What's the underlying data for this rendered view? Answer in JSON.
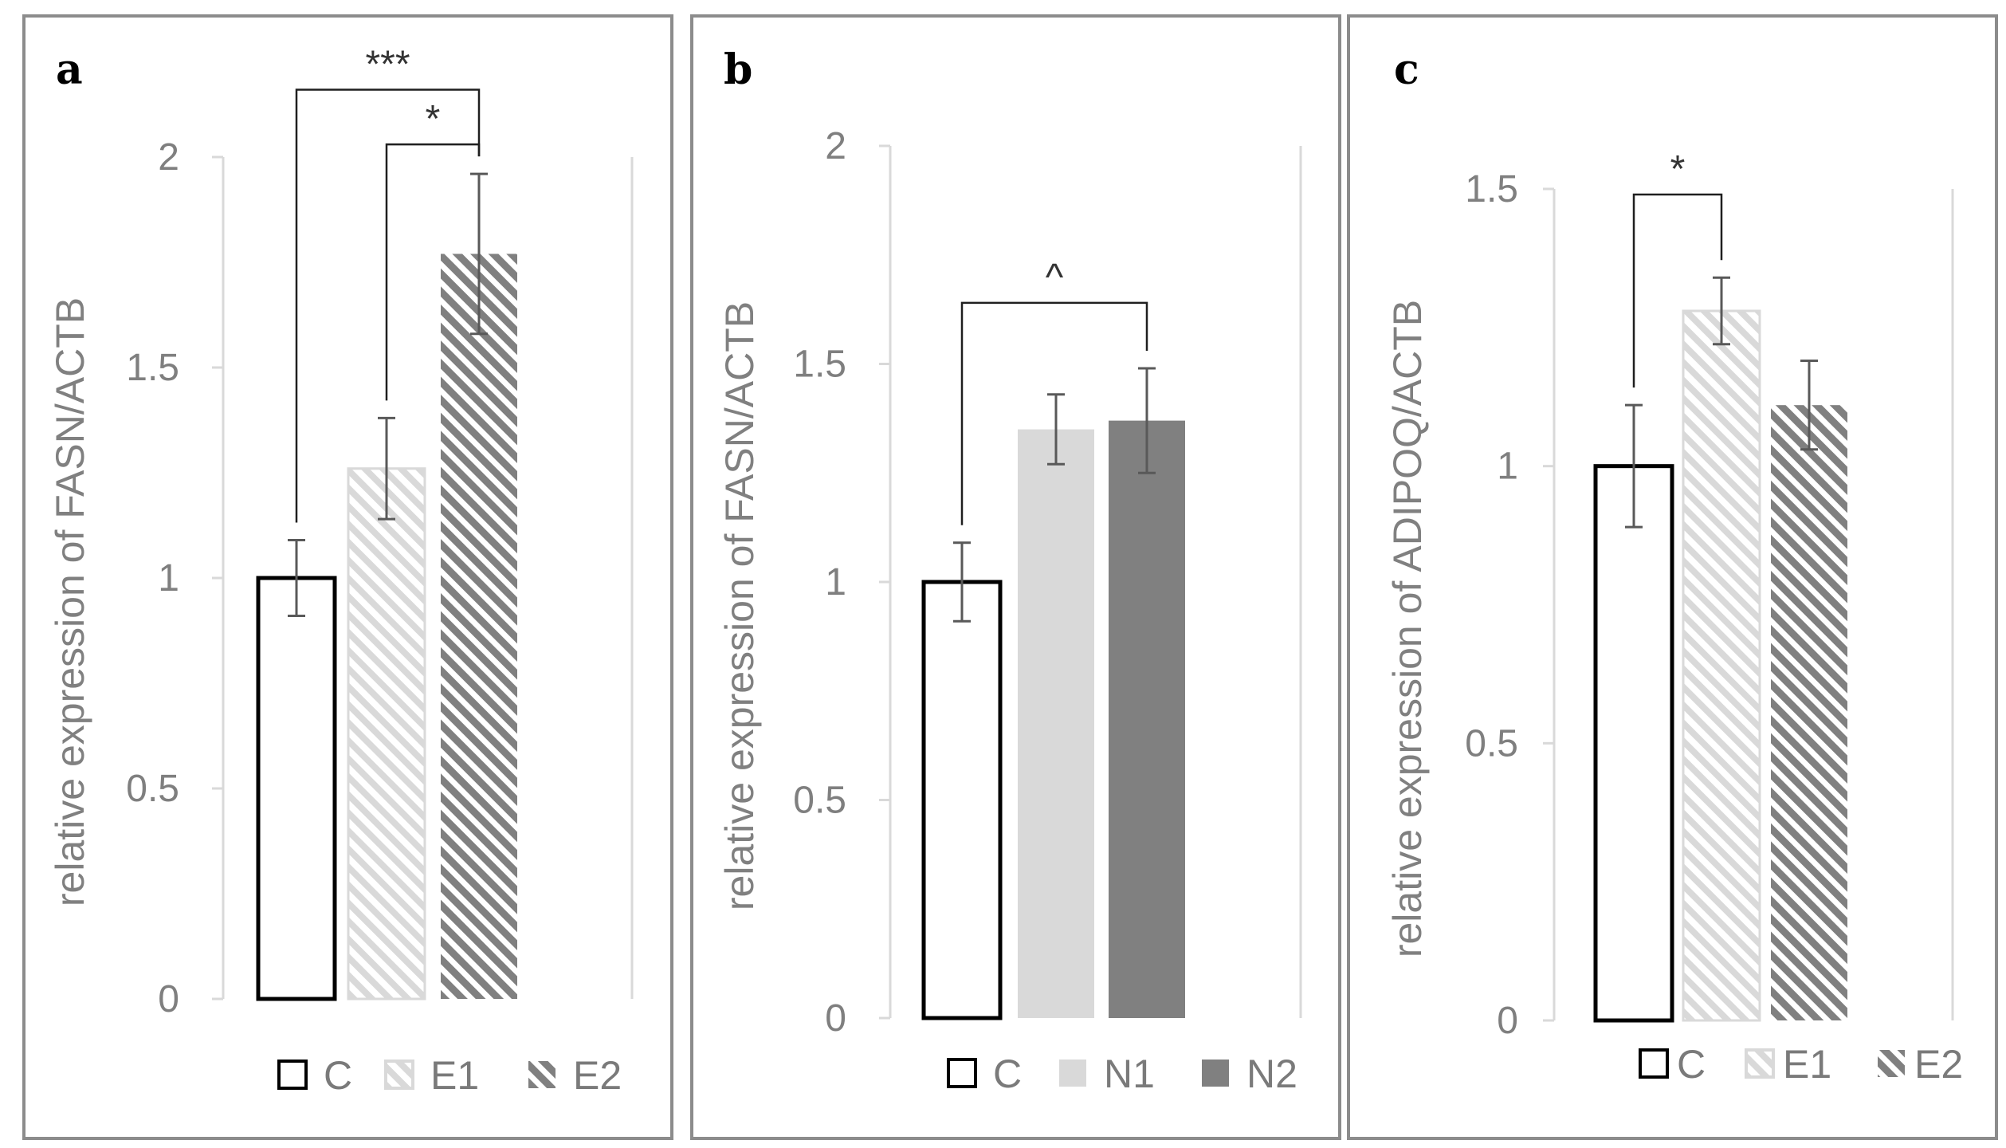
{
  "colors": {
    "axis": "#d9d9d9",
    "tick_text": "#7f7f7f",
    "bar_outline_control": "#000000",
    "light_gray": "#d9d9d9",
    "dark_gray": "#808080",
    "error_bar": "#595959",
    "bracket": "#1f1f1f"
  },
  "chart_data": [
    {
      "panel": "a",
      "type": "bar",
      "ylabel": "relative expression of FASN/ACTB",
      "ylim": [
        0,
        2
      ],
      "yticks": [
        "0",
        "0.5",
        "1",
        "1.5",
        "2"
      ],
      "categories": [
        "C",
        "E1",
        "E2"
      ],
      "values": [
        1.0,
        1.26,
        1.77
      ],
      "errors": [
        0.09,
        0.12,
        0.19
      ],
      "styles": [
        "outline",
        "hatch-light",
        "hatch-dark"
      ],
      "legend": [
        "C",
        "E1",
        "E2"
      ],
      "significance": [
        {
          "from": 0,
          "to": 2,
          "label": "***",
          "level": 2.16
        },
        {
          "from": 1,
          "to": 2,
          "label": "*",
          "level": 2.03
        }
      ]
    },
    {
      "panel": "b",
      "type": "bar",
      "ylabel": "relative expression of FASN/ACTB",
      "ylim": [
        0,
        2
      ],
      "yticks": [
        "0",
        "0.5",
        "1",
        "1.5",
        "2"
      ],
      "categories": [
        "C",
        "N1",
        "N2"
      ],
      "values": [
        1.0,
        1.35,
        1.37
      ],
      "errors": [
        0.09,
        0.08,
        0.12
      ],
      "styles": [
        "outline",
        "solid-light",
        "solid-dark"
      ],
      "legend": [
        "C",
        "N1",
        "N2"
      ],
      "significance": [
        {
          "from": 0,
          "to": 2,
          "label": "^",
          "level": 1.64
        }
      ]
    },
    {
      "panel": "c",
      "type": "bar",
      "ylabel": "relative expression of ADIPOQ/ACTB",
      "ylim": [
        0,
        1.5
      ],
      "yticks": [
        "0",
        "0.5",
        "1",
        "1.5"
      ],
      "categories": [
        "C",
        "E1",
        "E2"
      ],
      "values": [
        1.0,
        1.28,
        1.11
      ],
      "errors": [
        0.11,
        0.06,
        0.08
      ],
      "styles": [
        "outline",
        "hatch-light",
        "hatch-dark"
      ],
      "legend": [
        "C",
        "E1",
        "E2"
      ],
      "significance": [
        {
          "from": 0,
          "to": 1,
          "label": "*",
          "level": 1.49
        }
      ]
    }
  ]
}
